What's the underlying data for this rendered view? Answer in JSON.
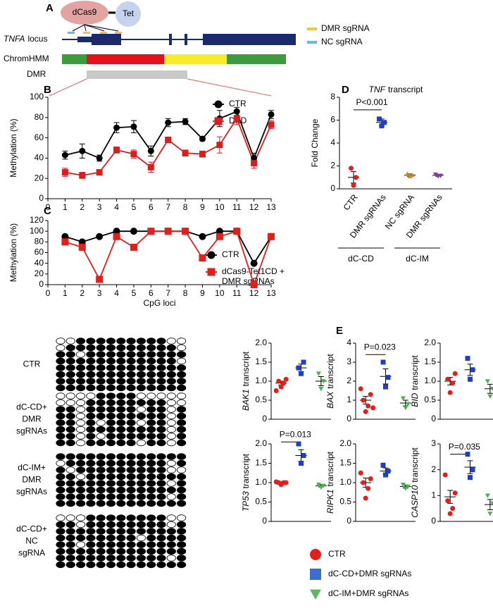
{
  "diagram": {
    "label": "A",
    "nodes": [
      "dCas9",
      "Tet"
    ],
    "locus_label": "TNFA",
    "locus_rest": "locus",
    "tracks": [
      "ChromHMM",
      "DMR"
    ],
    "legend": [
      "DMR sgRNA",
      "NC sgRNA"
    ]
  },
  "chart_data": [
    {
      "type": "line",
      "panel": "B",
      "ylabel": "Methylation (%)",
      "x": [
        1,
        2,
        3,
        4,
        5,
        6,
        7,
        8,
        9,
        10,
        11,
        12,
        13
      ],
      "xlim": [
        0,
        13
      ],
      "xticks": [
        0,
        1,
        2,
        3,
        4,
        5,
        6,
        7,
        8,
        9,
        10,
        11,
        12,
        13
      ],
      "ylim": [
        0,
        100
      ],
      "yticks": [
        0,
        20,
        40,
        60,
        80,
        100
      ],
      "series": [
        {
          "name": "CTR",
          "color": "#000000",
          "marker": "circle",
          "values": [
            43,
            47,
            40,
            70,
            71,
            47,
            75,
            76,
            59,
            79,
            86,
            40,
            83
          ],
          "errors": [
            4,
            7,
            3,
            5,
            6,
            5,
            4,
            3,
            2,
            8,
            4,
            5,
            4
          ]
        },
        {
          "name": "DKD",
          "color": "#d62020",
          "marker": "square",
          "values": [
            26,
            23,
            26,
            48,
            44,
            31,
            58,
            45,
            44,
            53,
            79,
            35,
            73
          ],
          "errors": [
            4,
            3,
            2,
            3,
            4,
            5,
            2,
            3,
            3,
            8,
            6,
            5,
            4
          ]
        }
      ]
    },
    {
      "type": "line",
      "panel": "C",
      "ylabel": "Methylation (%)",
      "xlabel": "CpG loci",
      "x": [
        1,
        2,
        3,
        4,
        5,
        6,
        7,
        8,
        9,
        10,
        11,
        12,
        13
      ],
      "xlim": [
        0,
        13
      ],
      "xticks": [
        0,
        1,
        2,
        3,
        4,
        5,
        6,
        7,
        8,
        9,
        10,
        11,
        12,
        13
      ],
      "ylim": [
        0,
        120
      ],
      "yticks": [
        0,
        20,
        40,
        60,
        80,
        100,
        120
      ],
      "series": [
        {
          "name": [
            "CTR"
          ],
          "color": "#000000",
          "marker": "circle",
          "values": [
            90,
            80,
            90,
            100,
            100,
            100,
            100,
            100,
            90,
            100,
            100,
            40,
            90
          ]
        },
        {
          "name": [
            "dCas9-Tet1CD +",
            "DMR sgRNAs"
          ],
          "color": "#e0201b",
          "marker": "square",
          "values": [
            80,
            70,
            10,
            90,
            70,
            100,
            100,
            100,
            50,
            90,
            100,
            0,
            90
          ]
        }
      ]
    },
    {
      "type": "dot",
      "panel": "D",
      "title_gene": "TNF",
      "title_rest": "transcript",
      "ylabel": "Fold Change",
      "ylim": [
        0,
        8
      ],
      "yticks": [
        0,
        2,
        4,
        6,
        8
      ],
      "categories": [
        "CTR",
        "DMR sgRNAs",
        "NC sgRNA",
        "DMR sgRNAs"
      ],
      "groups": [
        {
          "label": "dC-CD",
          "categories": [
            0,
            1
          ]
        },
        {
          "label": "dC-IM",
          "categories": [
            2,
            3
          ]
        }
      ],
      "series": [
        {
          "color": "#e0201b",
          "marker": "circle",
          "points": [
            0.3,
            1.0,
            1.8
          ],
          "mean": 1.0,
          "sem": 0.5
        },
        {
          "color": "#1f3fbf",
          "marker": "square",
          "points": [
            5.5,
            5.8,
            6.1
          ],
          "mean": 5.8,
          "sem": 0.3
        },
        {
          "color": "#c08b2a",
          "marker": "triangle-up",
          "points": [
            1.1,
            1.2,
            1.3
          ],
          "mean": 1.2,
          "sem": 0.1
        },
        {
          "color": "#7b3fa0",
          "marker": "triangle-down",
          "points": [
            1.1,
            1.15,
            1.25
          ],
          "mean": 1.18,
          "sem": 0.08
        }
      ],
      "annotation": {
        "text": "P<0.001",
        "between": [
          0,
          1
        ],
        "y": 6.9
      }
    },
    {
      "type": "dot",
      "panel": "E",
      "ylabel_gene": "BAK1",
      "ylabel_rest": "transcript",
      "ylim": [
        0,
        2
      ],
      "yticks": [
        0,
        0.5,
        {
          "value": 1,
          "label": "1.0"
        },
        1.5,
        {
          "value": 2,
          "label": "2.0"
        }
      ],
      "series": [
        {
          "color": "#e0201b",
          "marker": "circle",
          "points": [
            0.85,
            0.95,
            1.0,
            1.05,
            0.75
          ],
          "mean": 0.95,
          "sem": 0.05
        },
        {
          "color": "#1f3fbf",
          "marker": "square",
          "points": [
            1.2,
            1.5,
            1.35
          ],
          "mean": 1.35,
          "sem": 0.1
        },
        {
          "color": "#4caf50",
          "marker": "triangle-down",
          "points": [
            0.8,
            1.0,
            1.2
          ],
          "mean": 1.0,
          "sem": 0.12
        }
      ]
    },
    {
      "type": "dot",
      "panel": "E",
      "ylabel_gene": "BAX",
      "ylabel_rest": "transcript",
      "ylim": [
        0,
        4
      ],
      "yticks": [
        0,
        1,
        2,
        3,
        4
      ],
      "series": [
        {
          "color": "#e0201b",
          "marker": "circle",
          "points": [
            0.4,
            0.7,
            1.0,
            1.3,
            1.6,
            0.6
          ],
          "mean": 1.0,
          "sem": 0.2
        },
        {
          "color": "#1f3fbf",
          "marker": "square",
          "points": [
            1.7,
            2.2,
            3.0
          ],
          "mean": 2.25,
          "sem": 0.4
        },
        {
          "color": "#4caf50",
          "marker": "triangle-down",
          "points": [
            0.6,
            0.8,
            1.1
          ],
          "mean": 0.85,
          "sem": 0.15
        }
      ],
      "annotation": {
        "text": "P=0.023",
        "between": [
          0,
          1
        ],
        "y": 3.4
      }
    },
    {
      "type": "dot",
      "panel": "E",
      "ylabel_gene": "BID",
      "ylabel_rest": "transcript",
      "ylim": [
        0,
        2
      ],
      "yticks": [
        0,
        0.5,
        {
          "value": 1,
          "label": "1.0"
        },
        1.5,
        {
          "value": 2,
          "label": "2.0"
        }
      ],
      "series": [
        {
          "color": "#e0201b",
          "marker": "circle",
          "points": [
            0.7,
            0.95,
            1.05,
            1.2
          ],
          "mean": 1.0,
          "sem": 0.1
        },
        {
          "color": "#1f3fbf",
          "marker": "square",
          "points": [
            1.05,
            1.3,
            1.6
          ],
          "mean": 1.3,
          "sem": 0.15
        },
        {
          "color": "#4caf50",
          "marker": "triangle-down",
          "points": [
            0.6,
            0.8,
            1.0
          ],
          "mean": 0.8,
          "sem": 0.12
        }
      ]
    },
    {
      "type": "dot",
      "panel": "E",
      "ylabel_gene": "TP53",
      "ylabel_rest": "transcript",
      "ylim": [
        0,
        2
      ],
      "yticks": [
        0,
        0.5,
        {
          "value": 1,
          "label": "1.0"
        },
        1.5,
        {
          "value": 2,
          "label": "2.0"
        }
      ],
      "series": [
        {
          "color": "#e0201b",
          "marker": "circle",
          "points": [
            0.95,
            1.0,
            1.0,
            1.0,
            1.02
          ],
          "mean": 1.0,
          "sem": 0.02
        },
        {
          "color": "#1f3fbf",
          "marker": "square",
          "points": [
            1.5,
            1.7,
            2.0
          ],
          "mean": 1.7,
          "sem": 0.15
        },
        {
          "color": "#4caf50",
          "marker": "triangle-down",
          "points": [
            0.88,
            0.92,
            0.95
          ],
          "mean": 0.92,
          "sem": 0.03
        }
      ],
      "annotation": {
        "text": "P=0.013",
        "between": [
          0,
          1
        ],
        "y": 2.05
      }
    },
    {
      "type": "dot",
      "panel": "E",
      "ylabel_gene": "RIPK1",
      "ylabel_rest": "transcript",
      "ylim": [
        0,
        2
      ],
      "yticks": [
        0,
        0.5,
        {
          "value": 1,
          "label": "1.0"
        },
        1.5,
        {
          "value": 2,
          "label": "2.0"
        }
      ],
      "series": [
        {
          "color": "#e0201b",
          "marker": "circle",
          "points": [
            0.6,
            0.85,
            1.0,
            1.1,
            1.25
          ],
          "mean": 1.0,
          "sem": 0.12
        },
        {
          "color": "#1f3fbf",
          "marker": "square",
          "points": [
            1.2,
            1.3,
            1.45
          ],
          "mean": 1.3,
          "sem": 0.08
        },
        {
          "color": "#4caf50",
          "marker": "triangle-down",
          "points": [
            0.85,
            0.9,
            0.95
          ],
          "mean": 0.9,
          "sem": 0.04
        }
      ]
    },
    {
      "type": "dot",
      "panel": "E",
      "ylabel_gene": "CASP10",
      "ylabel_rest": "transcript",
      "ylim": [
        0,
        3
      ],
      "yticks": [
        0,
        1,
        2,
        3
      ],
      "series": [
        {
          "color": "#e0201b",
          "marker": "circle",
          "points": [
            0.3,
            0.5,
            0.8,
            1.1,
            1.8
          ],
          "mean": 0.95,
          "sem": 0.25
        },
        {
          "color": "#1f3fbf",
          "marker": "square",
          "points": [
            1.7,
            2.0,
            2.6
          ],
          "mean": 2.1,
          "sem": 0.25
        },
        {
          "color": "#4caf50",
          "marker": "triangle-down",
          "points": [
            0.3,
            0.7,
            1.0
          ],
          "mean": 0.65,
          "sem": 0.2
        }
      ],
      "annotation": {
        "text": "P=0.035",
        "between": [
          0,
          1
        ],
        "y": 2.6
      }
    }
  ],
  "panel_e_legend": {
    "label": "E",
    "items": [
      {
        "name": "CTR",
        "color": "#e0201b",
        "marker": "circle"
      },
      {
        "name": "dC-CD+DMR sgRNAs",
        "color": "#3a6fd0",
        "marker": "square"
      },
      {
        "name": "dC-IM+DMR sgRNAs",
        "color": "#5cb85c",
        "marker": "triangle-down"
      }
    ]
  },
  "bisulfite": {
    "groups": [
      {
        "label": [
          "CTR"
        ],
        "rows": [
          [
            0,
            0,
            1,
            1,
            1,
            1,
            1,
            1,
            1,
            1,
            1,
            0,
            0
          ],
          [
            0,
            1,
            1,
            1,
            1,
            1,
            1,
            1,
            1,
            1,
            1,
            1,
            0
          ],
          [
            1,
            1,
            0,
            1,
            1,
            1,
            1,
            1,
            1,
            1,
            1,
            1,
            1
          ],
          [
            1,
            1,
            1,
            1,
            1,
            1,
            1,
            1,
            1,
            1,
            1,
            1,
            0
          ],
          [
            1,
            1,
            1,
            1,
            1,
            1,
            1,
            1,
            1,
            1,
            1,
            1,
            1
          ],
          [
            1,
            1,
            1,
            1,
            1,
            1,
            1,
            1,
            1,
            1,
            1,
            1,
            1
          ],
          [
            1,
            1,
            1,
            1,
            1,
            1,
            1,
            1,
            1,
            1,
            1,
            1,
            1
          ],
          [
            1,
            1,
            1,
            1,
            1,
            1,
            1,
            1,
            1,
            1,
            1,
            1,
            1
          ]
        ]
      },
      {
        "label": [
          "dC-CD+",
          "DMR",
          "sgRNAs"
        ],
        "rows": [
          [
            0,
            0,
            0,
            0,
            1,
            1,
            1,
            1,
            0,
            0,
            0,
            0,
            0
          ],
          [
            0,
            0,
            0,
            1,
            1,
            1,
            1,
            1,
            1,
            1,
            1,
            0,
            0
          ],
          [
            1,
            1,
            0,
            1,
            1,
            1,
            1,
            1,
            0,
            1,
            1,
            0,
            1
          ],
          [
            1,
            1,
            0,
            1,
            1,
            1,
            1,
            1,
            1,
            1,
            1,
            0,
            1
          ],
          [
            1,
            1,
            0,
            1,
            0,
            1,
            1,
            1,
            0,
            1,
            1,
            0,
            1
          ],
          [
            1,
            1,
            0,
            1,
            1,
            1,
            1,
            1,
            1,
            1,
            1,
            0,
            1
          ],
          [
            1,
            1,
            0,
            1,
            0,
            1,
            1,
            1,
            1,
            1,
            1,
            0,
            1
          ],
          [
            1,
            1,
            0,
            1,
            1,
            1,
            1,
            1,
            0,
            1,
            1,
            0,
            1
          ]
        ]
      },
      {
        "label": [
          "dC-IM+",
          "DMR",
          "sgRNAs"
        ],
        "rows": [
          [
            1,
            1,
            1,
            1,
            1,
            1,
            1,
            1,
            1,
            1,
            1,
            1,
            1
          ],
          [
            0,
            1,
            1,
            1,
            1,
            1,
            1,
            1,
            1,
            1,
            1,
            0,
            1
          ],
          [
            1,
            0,
            1,
            1,
            1,
            1,
            1,
            1,
            1,
            1,
            1,
            0,
            0
          ],
          [
            1,
            1,
            0,
            1,
            1,
            1,
            1,
            1,
            1,
            1,
            1,
            1,
            1
          ],
          [
            1,
            1,
            1,
            1,
            1,
            1,
            1,
            1,
            1,
            1,
            1,
            0,
            1
          ],
          [
            1,
            1,
            1,
            1,
            1,
            1,
            1,
            1,
            1,
            1,
            1,
            1,
            1
          ],
          [
            1,
            1,
            1,
            1,
            1,
            1,
            1,
            1,
            1,
            1,
            1,
            0,
            1
          ],
          [
            1,
            1,
            1,
            1,
            1,
            1,
            1,
            1,
            1,
            1,
            1,
            1,
            1
          ]
        ]
      },
      {
        "label": [
          "dC-CD+",
          "NC",
          "sgRNA"
        ],
        "rows": [
          [
            0,
            0,
            0,
            1,
            1,
            1,
            1,
            1,
            1,
            1,
            1,
            0,
            0
          ],
          [
            1,
            1,
            0,
            1,
            1,
            1,
            1,
            1,
            1,
            1,
            1,
            0,
            1
          ],
          [
            1,
            1,
            1,
            1,
            1,
            1,
            1,
            1,
            1,
            1,
            1,
            1,
            1
          ],
          [
            1,
            1,
            1,
            1,
            1,
            1,
            1,
            1,
            0,
            1,
            1,
            1,
            1
          ],
          [
            1,
            1,
            0,
            1,
            1,
            1,
            1,
            1,
            1,
            1,
            1,
            1,
            1
          ],
          [
            1,
            1,
            1,
            1,
            1,
            1,
            1,
            1,
            1,
            1,
            1,
            1,
            1
          ],
          [
            1,
            1,
            1,
            1,
            1,
            1,
            1,
            1,
            1,
            1,
            1,
            0,
            1
          ],
          [
            1,
            1,
            1,
            1,
            1,
            1,
            1,
            1,
            1,
            1,
            1,
            1,
            1
          ]
        ]
      }
    ]
  }
}
